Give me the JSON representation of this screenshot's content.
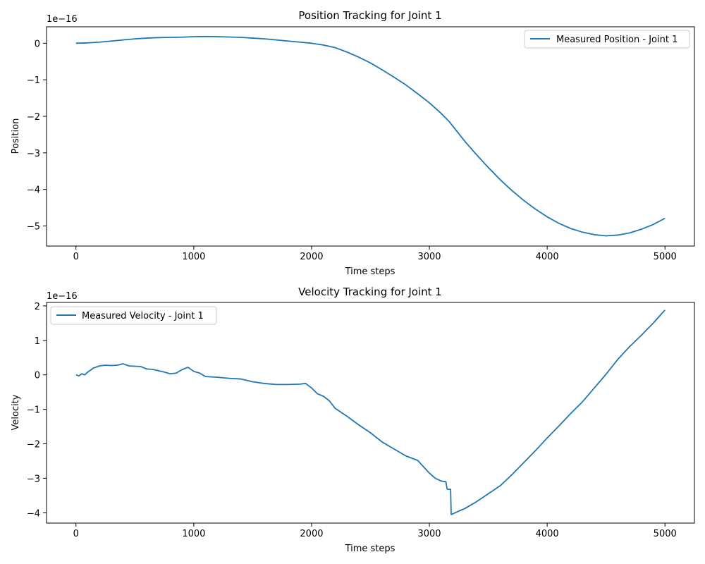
{
  "chart_data": [
    {
      "type": "line",
      "title": "Position Tracking for Joint 1",
      "xlabel": "Time steps",
      "ylabel": "Position",
      "y_offset_label": "1e−16",
      "y_scale_exponent": -16,
      "xlim": [
        -250,
        5250
      ],
      "ylim": [
        -5.55,
        0.45
      ],
      "xticks": [
        0,
        1000,
        2000,
        3000,
        4000,
        5000
      ],
      "xtick_labels": [
        "0",
        "1000",
        "2000",
        "3000",
        "4000",
        "5000"
      ],
      "yticks": [
        0,
        -1,
        -2,
        -3,
        -4,
        -5
      ],
      "ytick_labels": [
        "0",
        "−1",
        "−2",
        "−3",
        "−4",
        "−5"
      ],
      "grid": false,
      "legend_position": "top-right",
      "color": "#1f77b4",
      "series": [
        {
          "name": "Measured Position - Joint 1",
          "x": [
            0,
            100,
            200,
            300,
            400,
            500,
            600,
            700,
            800,
            900,
            1000,
            1100,
            1200,
            1300,
            1400,
            1500,
            1600,
            1700,
            1800,
            1900,
            2000,
            2100,
            2200,
            2300,
            2400,
            2500,
            2600,
            2700,
            2800,
            2900,
            3000,
            3100,
            3170,
            3300,
            3400,
            3500,
            3600,
            3700,
            3800,
            3900,
            4000,
            4100,
            4200,
            4300,
            4400,
            4500,
            4600,
            4700,
            4800,
            4900,
            5000
          ],
          "y": [
            0,
            0.01,
            0.03,
            0.06,
            0.09,
            0.12,
            0.14,
            0.155,
            0.16,
            0.165,
            0.18,
            0.185,
            0.18,
            0.17,
            0.16,
            0.14,
            0.12,
            0.09,
            0.06,
            0.03,
            0.0,
            -0.05,
            -0.12,
            -0.24,
            -0.38,
            -0.54,
            -0.73,
            -0.93,
            -1.14,
            -1.38,
            -1.63,
            -1.92,
            -2.15,
            -2.68,
            -3.05,
            -3.4,
            -3.73,
            -4.03,
            -4.3,
            -4.54,
            -4.75,
            -4.93,
            -5.07,
            -5.17,
            -5.24,
            -5.27,
            -5.25,
            -5.19,
            -5.09,
            -4.96,
            -4.79
          ]
        }
      ]
    },
    {
      "type": "line",
      "title": "Velocity Tracking for Joint 1",
      "xlabel": "Time steps",
      "ylabel": "Velocity",
      "y_offset_label": "1e−16",
      "y_scale_exponent": -16,
      "xlim": [
        -250,
        5250
      ],
      "ylim": [
        -4.3,
        2.1
      ],
      "xticks": [
        0,
        1000,
        2000,
        3000,
        4000,
        5000
      ],
      "xtick_labels": [
        "0",
        "1000",
        "2000",
        "3000",
        "4000",
        "5000"
      ],
      "yticks": [
        2,
        1,
        0,
        -1,
        -2,
        -3,
        -4
      ],
      "ytick_labels": [
        "2",
        "1",
        "0",
        "−1",
        "−2",
        "−3",
        "−4"
      ],
      "grid": false,
      "legend_position": "top-left",
      "color": "#1f77b4",
      "series": [
        {
          "name": "Measured Velocity - Joint 1",
          "x": [
            0,
            25,
            50,
            75,
            100,
            150,
            200,
            250,
            300,
            350,
            400,
            450,
            500,
            550,
            600,
            650,
            700,
            750,
            800,
            850,
            900,
            950,
            1000,
            1050,
            1100,
            1150,
            1200,
            1300,
            1400,
            1500,
            1600,
            1700,
            1800,
            1900,
            1950,
            2000,
            2050,
            2100,
            2150,
            2200,
            2300,
            2400,
            2500,
            2600,
            2700,
            2800,
            2900,
            3000,
            3050,
            3100,
            3140,
            3150,
            3155,
            3180,
            3185,
            3200,
            3250,
            3300,
            3400,
            3500,
            3600,
            3700,
            3800,
            3900,
            4000,
            4100,
            4200,
            4300,
            4400,
            4500,
            4600,
            4700,
            4800,
            4900,
            5000
          ],
          "y": [
            0.0,
            -0.03,
            0.03,
            0.0,
            0.08,
            0.2,
            0.26,
            0.28,
            0.27,
            0.28,
            0.32,
            0.26,
            0.25,
            0.24,
            0.17,
            0.16,
            0.12,
            0.08,
            0.03,
            0.05,
            0.15,
            0.22,
            0.1,
            0.05,
            -0.05,
            -0.06,
            -0.07,
            -0.1,
            -0.12,
            -0.2,
            -0.25,
            -0.28,
            -0.28,
            -0.27,
            -0.25,
            -0.38,
            -0.55,
            -0.62,
            -0.75,
            -0.97,
            -1.2,
            -1.45,
            -1.68,
            -1.95,
            -2.15,
            -2.35,
            -2.48,
            -2.85,
            -3.0,
            -3.08,
            -3.1,
            -3.3,
            -3.32,
            -3.32,
            -4.05,
            -4.03,
            -3.95,
            -3.88,
            -3.68,
            -3.45,
            -3.22,
            -2.9,
            -2.55,
            -2.2,
            -1.83,
            -1.48,
            -1.12,
            -0.78,
            -0.38,
            0.02,
            0.45,
            0.82,
            1.15,
            1.5,
            1.88
          ]
        }
      ]
    }
  ]
}
